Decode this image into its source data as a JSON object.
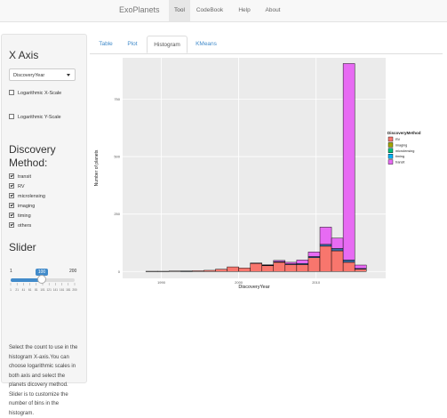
{
  "navbar": {
    "brand": "ExoPlanets",
    "items": [
      {
        "label": "Tool",
        "active": true
      },
      {
        "label": "CodeBook",
        "active": false
      },
      {
        "label": "Help",
        "active": false
      },
      {
        "label": "About",
        "active": false
      }
    ]
  },
  "sidebar": {
    "x_axis_heading": "X Axis",
    "x_axis_select": "DiscoveryYear",
    "log_x_label": "Logarithmic X-Scale",
    "log_y_label": "Logarithmic Y-Scale",
    "method_heading_1": "Discovery",
    "method_heading_2": "Method:",
    "methods": [
      {
        "label": "transit",
        "checked": true
      },
      {
        "label": "RV",
        "checked": true
      },
      {
        "label": "microlensing",
        "checked": true
      },
      {
        "label": "imaging",
        "checked": true
      },
      {
        "label": "timing",
        "checked": true
      },
      {
        "label": "others",
        "checked": true
      }
    ],
    "slider_heading": "Slider",
    "slider": {
      "min": "1",
      "max": "200",
      "value": "100",
      "fraction": 0.5,
      "ticks": [
        "1",
        "21",
        "41",
        "61",
        "81",
        "101",
        "121",
        "141",
        "161",
        "181",
        "200"
      ]
    },
    "help_text": "Select the count to use in the histogram X-axis.You can choose logarithmic scales in both axis and select the planets dicovery method. Slider is to customize the number of bins in the histogram."
  },
  "tabs": [
    {
      "label": "Table",
      "active": false
    },
    {
      "label": "Plot",
      "active": false
    },
    {
      "label": "Histogram",
      "active": true
    },
    {
      "label": "KMeans",
      "active": false
    }
  ],
  "chart_data": {
    "type": "bar",
    "stacked": true,
    "xlabel": "DiscoveryYear",
    "ylabel": "Number of planets",
    "xticks": [
      "1990",
      "2000",
      "2010"
    ],
    "yticks": [
      "0",
      "250",
      "500",
      "750"
    ],
    "xlim": [
      1985,
      2019
    ],
    "ylim": [
      -30,
      930
    ],
    "grid": true,
    "legend_title": "DiscoveryMethod",
    "legend_position": "right",
    "colors": {
      "RV": "#F8766D",
      "imaging": "#A3A500",
      "microlensing": "#00BF7D",
      "timing": "#00B0F6",
      "transit": "#E76BF3"
    },
    "bins": [
      {
        "x0": 1988,
        "x1": 1989.5,
        "RV": 1,
        "transit": 0,
        "other": 0
      },
      {
        "x0": 1989.5,
        "x1": 1991,
        "RV": 1,
        "transit": 0,
        "other": 0
      },
      {
        "x0": 1991,
        "x1": 1992.5,
        "RV": 2,
        "transit": 0,
        "other": 0
      },
      {
        "x0": 1992.5,
        "x1": 1994,
        "RV": 1,
        "transit": 0,
        "other": 1
      },
      {
        "x0": 1994,
        "x1": 1995.5,
        "RV": 3,
        "transit": 0,
        "other": 0
      },
      {
        "x0": 1995.5,
        "x1": 1997,
        "RV": 5,
        "transit": 0,
        "other": 0
      },
      {
        "x0": 1997,
        "x1": 1998.5,
        "RV": 10,
        "transit": 0,
        "other": 0
      },
      {
        "x0": 1998.5,
        "x1": 2000,
        "RV": 20,
        "transit": 0,
        "other": 0
      },
      {
        "x0": 2000,
        "x1": 2001.5,
        "RV": 15,
        "transit": 0,
        "other": 0
      },
      {
        "x0": 2001.5,
        "x1": 2003,
        "RV": 35,
        "transit": 0,
        "other": 2
      },
      {
        "x0": 2003,
        "x1": 2004.5,
        "RV": 25,
        "transit": 2,
        "other": 2
      },
      {
        "x0": 2004.5,
        "x1": 2006,
        "RV": 40,
        "transit": 5,
        "other": 3
      },
      {
        "x0": 2006,
        "x1": 2007.5,
        "RV": 30,
        "transit": 7,
        "other": 3
      },
      {
        "x0": 2007.5,
        "x1": 2009,
        "RV": 30,
        "transit": 15,
        "other": 5
      },
      {
        "x0": 2009,
        "x1": 2010.5,
        "RV": 60,
        "transit": 20,
        "other": 5
      },
      {
        "x0": 2010.5,
        "x1": 2012,
        "RV": 110,
        "transit": 75,
        "other": 8
      },
      {
        "x0": 2012,
        "x1": 2013.5,
        "RV": 90,
        "transit": 45,
        "other": 10
      },
      {
        "x0": 2013.5,
        "x1": 2015,
        "RV": 40,
        "transit": 855,
        "other": 10
      },
      {
        "x0": 2015,
        "x1": 2016.5,
        "RV": 10,
        "transit": 15,
        "other": 3
      }
    ]
  }
}
